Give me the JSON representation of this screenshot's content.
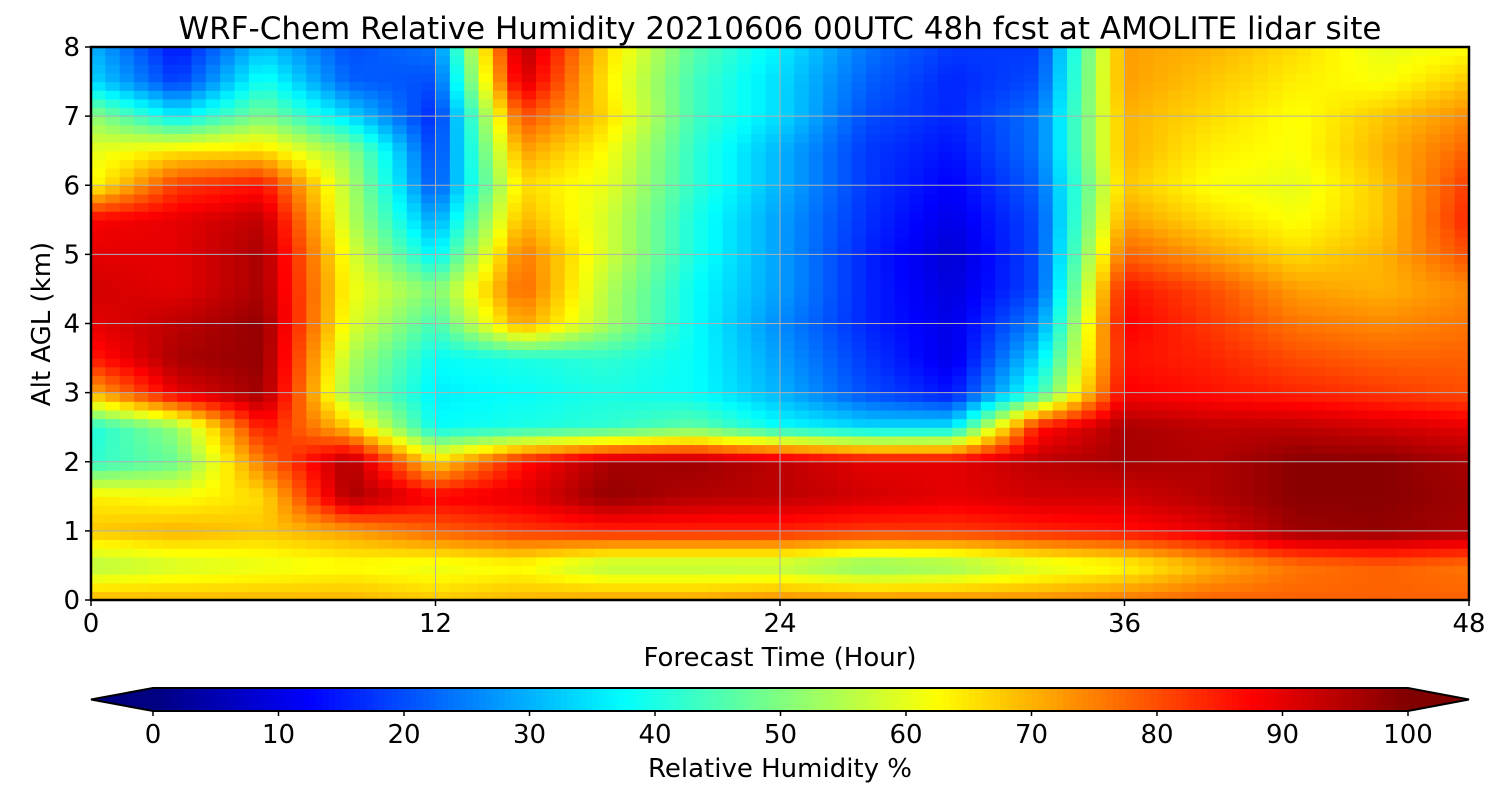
{
  "chart_data": {
    "type": "heatmap",
    "title": "WRF-Chem Relative Humidity 20210606 00UTC 48h fcst at AMOLITE lidar site",
    "xlabel": "Forecast Time (Hour)",
    "ylabel": "Alt AGL (km)",
    "xlim": [
      0,
      48
    ],
    "ylim": [
      0,
      8
    ],
    "x_ticks": [
      "0",
      "12",
      "24",
      "36",
      "48"
    ],
    "y_ticks": [
      "0",
      "1",
      "2",
      "3",
      "4",
      "5",
      "6",
      "7",
      "8"
    ],
    "grid": true,
    "colormap": "jet",
    "colorbar": {
      "label": "Relative Humidity %",
      "range": [
        0,
        100
      ],
      "ticks": [
        "0",
        "10",
        "20",
        "30",
        "40",
        "50",
        "60",
        "70",
        "80",
        "90",
        "100"
      ],
      "extend": "both",
      "under_color": "#000080",
      "over_color": "#800000"
    },
    "x": [
      0,
      3,
      6,
      9,
      12,
      15,
      18,
      21,
      24,
      27,
      30,
      33,
      36,
      39,
      42,
      45,
      48
    ],
    "y": [
      0,
      0.5,
      1,
      1.5,
      2,
      2.5,
      3,
      3.5,
      4,
      4.5,
      5,
      5.5,
      6,
      6.5,
      7,
      7.5,
      8
    ],
    "z": [
      [
        70,
        70,
        70,
        70,
        68,
        70,
        72,
        72,
        74,
        74,
        74,
        74,
        76,
        78,
        78,
        78,
        78
      ],
      [
        55,
        58,
        60,
        62,
        60,
        62,
        55,
        55,
        55,
        50,
        52,
        58,
        62,
        70,
        76,
        78,
        76
      ],
      [
        68,
        70,
        68,
        72,
        78,
        82,
        84,
        84,
        84,
        82,
        82,
        84,
        86,
        90,
        97,
        98,
        96
      ],
      [
        64,
        62,
        66,
        96,
        88,
        90,
        98,
        95,
        94,
        92,
        90,
        92,
        92,
        95,
        99,
        99,
        97
      ],
      [
        42,
        48,
        76,
        96,
        66,
        86,
        96,
        97,
        94,
        90,
        90,
        94,
        96,
        95,
        99,
        99,
        96
      ],
      [
        40,
        52,
        86,
        68,
        38,
        40,
        42,
        47,
        38,
        34,
        35,
        86,
        96,
        94,
        94,
        92,
        90
      ],
      [
        70,
        90,
        97,
        52,
        36,
        38,
        40,
        38,
        30,
        20,
        14,
        42,
        88,
        86,
        84,
        82,
        80
      ],
      [
        85,
        96,
        98,
        55,
        38,
        40,
        42,
        38,
        28,
        18,
        10,
        34,
        86,
        84,
        80,
        78,
        78
      ],
      [
        90,
        94,
        98,
        60,
        44,
        72,
        54,
        38,
        26,
        16,
        10,
        26,
        88,
        82,
        76,
        74,
        76
      ],
      [
        92,
        90,
        96,
        62,
        50,
        78,
        55,
        38,
        28,
        16,
        9,
        20,
        86,
        80,
        72,
        70,
        74
      ],
      [
        90,
        90,
        96,
        60,
        36,
        76,
        58,
        40,
        28,
        16,
        8,
        20,
        78,
        72,
        66,
        70,
        80
      ],
      [
        88,
        90,
        94,
        56,
        28,
        70,
        58,
        40,
        28,
        17,
        10,
        20,
        72,
        66,
        62,
        68,
        84
      ],
      [
        62,
        82,
        86,
        55,
        20,
        66,
        60,
        42,
        30,
        18,
        12,
        22,
        68,
        62,
        60,
        68,
        82
      ],
      [
        60,
        65,
        66,
        52,
        18,
        72,
        62,
        42,
        30,
        18,
        14,
        24,
        70,
        64,
        62,
        70,
        78
      ],
      [
        52,
        36,
        50,
        34,
        16,
        80,
        66,
        44,
        34,
        20,
        16,
        24,
        70,
        66,
        62,
        68,
        74
      ],
      [
        34,
        18,
        40,
        22,
        20,
        92,
        64,
        44,
        34,
        22,
        16,
        20,
        72,
        68,
        64,
        62,
        68
      ],
      [
        30,
        14,
        32,
        20,
        24,
        96,
        66,
        46,
        36,
        24,
        18,
        18,
        72,
        70,
        66,
        60,
        62
      ]
    ]
  }
}
